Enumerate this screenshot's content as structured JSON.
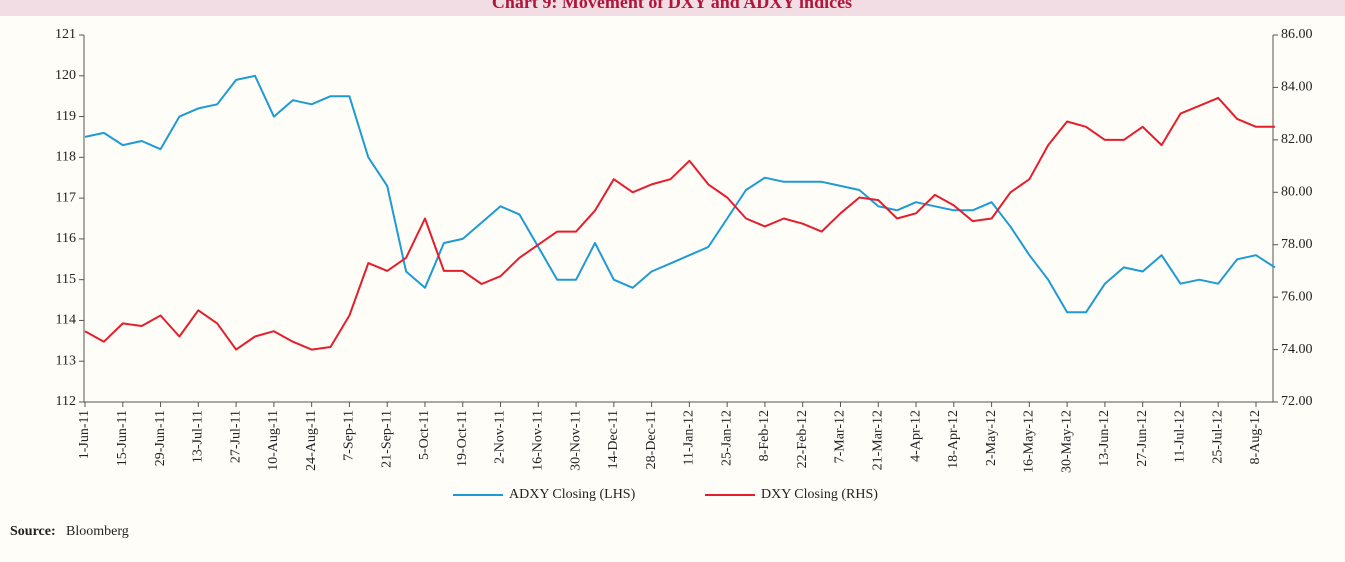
{
  "chart_data": {
    "type": "line",
    "title": "Chart 9: Movement of DXY and ADXY indices",
    "source_label": "Source:",
    "source": "Bloomberg",
    "categories": [
      "1-Jun-11",
      null,
      "15-Jun-11",
      null,
      "29-Jun-11",
      null,
      "13-Jul-11",
      null,
      "27-Jul-11",
      null,
      "10-Aug-11",
      null,
      "24-Aug-11",
      null,
      "7-Sep-11",
      null,
      "21-Sep-11",
      null,
      "5-Oct-11",
      null,
      "19-Oct-11",
      null,
      "2-Nov-11",
      null,
      "16-Nov-11",
      null,
      "30-Nov-11",
      null,
      "14-Dec-11",
      null,
      "28-Dec-11",
      null,
      "11-Jan-12",
      null,
      "25-Jan-12",
      null,
      "8-Feb-12",
      null,
      "22-Feb-12",
      null,
      "7-Mar-12",
      null,
      "21-Mar-12",
      null,
      "4-Apr-12",
      null,
      "18-Apr-12",
      null,
      "2-May-12",
      null,
      "16-May-12",
      null,
      "30-May-12",
      null,
      "13-Jun-12",
      null,
      "27-Jun-12",
      null,
      "11-Jul-12",
      null,
      "25-Jul-12",
      null,
      "8-Aug-12",
      null
    ],
    "series": [
      {
        "name": "ADXY Closing (LHS)",
        "color": "#1e9ad6",
        "axis": "y",
        "values": [
          118.5,
          118.6,
          118.3,
          118.4,
          118.2,
          119.0,
          119.2,
          119.3,
          119.9,
          120.0,
          119.0,
          119.4,
          119.3,
          119.5,
          119.5,
          118.0,
          117.3,
          115.2,
          114.8,
          115.9,
          116.0,
          116.4,
          116.8,
          116.6,
          115.8,
          115.0,
          115.0,
          115.9,
          115.0,
          114.8,
          115.2,
          115.4,
          115.6,
          115.8,
          116.5,
          117.2,
          117.5,
          117.4,
          117.4,
          117.4,
          117.3,
          117.2,
          116.8,
          116.7,
          116.9,
          116.8,
          116.7,
          116.7,
          116.9,
          116.3,
          115.6,
          115.0,
          114.2,
          114.2,
          114.9,
          115.3,
          115.2,
          115.6,
          114.9,
          115.0,
          114.9,
          115.5,
          115.6,
          115.3
        ]
      },
      {
        "name": "DXY Closing (RHS)",
        "color": "#e31e2d",
        "axis": "y2",
        "values": [
          74.7,
          74.3,
          75.0,
          74.9,
          75.3,
          74.5,
          75.5,
          75.0,
          74.0,
          74.5,
          74.7,
          74.3,
          74.0,
          74.1,
          75.3,
          77.3,
          77.0,
          77.5,
          79.0,
          77.0,
          77.0,
          76.5,
          76.8,
          77.5,
          78.0,
          78.5,
          78.5,
          79.3,
          80.5,
          80.0,
          80.3,
          80.5,
          81.2,
          80.3,
          79.8,
          79.0,
          78.7,
          79.0,
          78.8,
          78.5,
          79.2,
          79.8,
          79.7,
          79.0,
          79.2,
          79.9,
          79.5,
          78.9,
          79.0,
          80.0,
          80.5,
          81.8,
          82.7,
          82.5,
          82.0,
          82.0,
          82.5,
          81.8,
          83.0,
          83.3,
          83.6,
          82.8,
          82.5,
          82.5
        ]
      }
    ],
    "ylim": [
      112,
      121
    ],
    "yticks": [
      112,
      113,
      114,
      115,
      116,
      117,
      118,
      119,
      120,
      121
    ],
    "y2lim": [
      72,
      86
    ],
    "y2ticks": [
      {
        "value": 72,
        "label": "72.00"
      },
      {
        "value": 74,
        "label": "74.00"
      },
      {
        "value": 76,
        "label": "76.00"
      },
      {
        "value": 78,
        "label": "78.00"
      },
      {
        "value": 80,
        "label": "80.00"
      },
      {
        "value": 82,
        "label": "82.00"
      },
      {
        "value": 84,
        "label": "84.00"
      },
      {
        "value": 86,
        "label": "86.00"
      }
    ],
    "legend": "bottom"
  }
}
